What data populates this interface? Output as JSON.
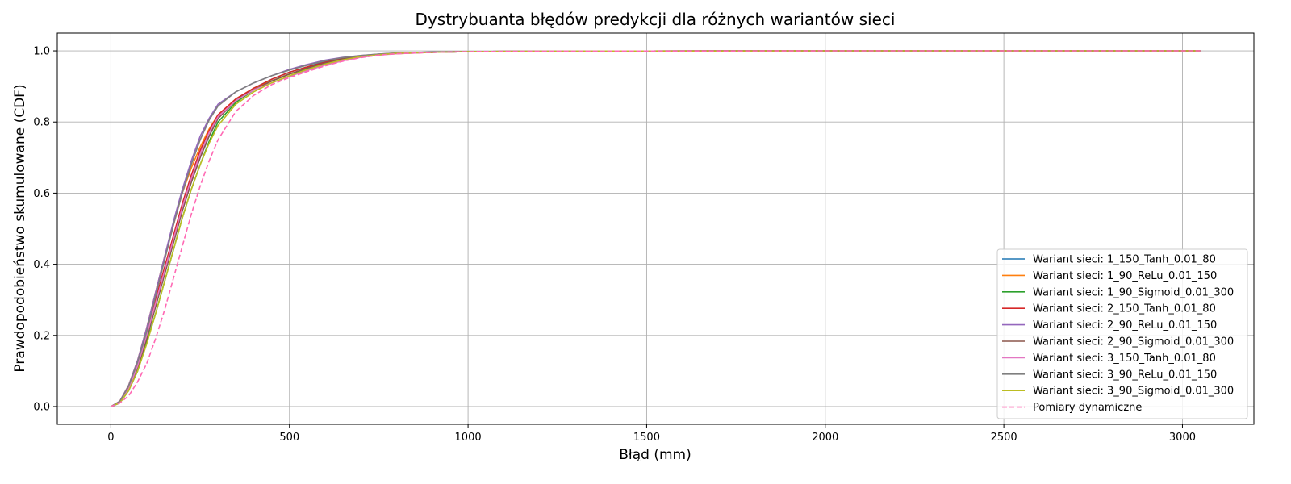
{
  "chart_data": {
    "type": "line",
    "title": "Dystrybuanta błędów predykcji dla różnych wariantów sieci",
    "xlabel": "Błąd (mm)",
    "ylabel": "Prawdopodobieństwo skumulowane (CDF)",
    "xlim": [
      -150,
      3200
    ],
    "ylim": [
      -0.05,
      1.05
    ],
    "xticks": [
      0,
      500,
      1000,
      1500,
      2000,
      2500,
      3000
    ],
    "yticks": [
      0.0,
      0.2,
      0.4,
      0.6,
      0.8,
      1.0
    ],
    "xtick_labels": [
      "0",
      "500",
      "1000",
      "1500",
      "2000",
      "2500",
      "3000"
    ],
    "ytick_labels": [
      "0.0",
      "0.2",
      "0.4",
      "0.6",
      "0.8",
      "1.0"
    ],
    "grid": true,
    "legend_position": "bottom-right",
    "series": [
      {
        "name": "Wariant sieci: 1_150_Tanh_0.01_80",
        "color": "#1f77b4",
        "style": "solid",
        "x": [
          0,
          25,
          50,
          75,
          100,
          125,
          150,
          175,
          200,
          225,
          250,
          275,
          300,
          350,
          400,
          450,
          500,
          550,
          600,
          650,
          700,
          750,
          800,
          900,
          1000,
          1200,
          1500,
          2000,
          2500,
          3050
        ],
        "y": [
          0,
          0.01,
          0.05,
          0.11,
          0.19,
          0.28,
          0.37,
          0.46,
          0.55,
          0.63,
          0.7,
          0.76,
          0.81,
          0.86,
          0.895,
          0.92,
          0.94,
          0.955,
          0.97,
          0.98,
          0.985,
          0.99,
          0.993,
          0.996,
          0.998,
          0.999,
          0.9995,
          1.0,
          1.0,
          1.0
        ]
      },
      {
        "name": "Wariant sieci: 1_90_ReLu_0.01_150",
        "color": "#ff7f0e",
        "style": "solid",
        "x": [
          0,
          25,
          50,
          75,
          100,
          125,
          150,
          175,
          200,
          225,
          250,
          275,
          300,
          350,
          400,
          450,
          500,
          550,
          600,
          650,
          700,
          750,
          800,
          900,
          1000,
          1200,
          1500,
          2000,
          2500,
          3050
        ],
        "y": [
          0,
          0.015,
          0.06,
          0.13,
          0.22,
          0.32,
          0.42,
          0.51,
          0.6,
          0.67,
          0.73,
          0.78,
          0.82,
          0.865,
          0.895,
          0.915,
          0.935,
          0.95,
          0.965,
          0.975,
          0.983,
          0.989,
          0.992,
          0.996,
          0.998,
          0.999,
          0.9995,
          1.0,
          1.0,
          1.0
        ]
      },
      {
        "name": "Wariant sieci: 1_90_Sigmoid_0.01_300",
        "color": "#2ca02c",
        "style": "solid",
        "x": [
          0,
          25,
          50,
          75,
          100,
          125,
          150,
          175,
          200,
          225,
          250,
          275,
          300,
          350,
          400,
          450,
          500,
          550,
          600,
          650,
          700,
          750,
          800,
          900,
          1000,
          1200,
          1500,
          2000,
          2500,
          3050
        ],
        "y": [
          0,
          0.01,
          0.045,
          0.1,
          0.18,
          0.26,
          0.35,
          0.44,
          0.53,
          0.61,
          0.68,
          0.745,
          0.8,
          0.855,
          0.89,
          0.915,
          0.935,
          0.95,
          0.965,
          0.977,
          0.985,
          0.99,
          0.993,
          0.996,
          0.998,
          0.999,
          0.9995,
          1.0,
          1.0,
          1.0
        ]
      },
      {
        "name": "Wariant sieci: 2_150_Tanh_0.01_80",
        "color": "#d62728",
        "style": "solid",
        "x": [
          0,
          25,
          50,
          75,
          100,
          125,
          150,
          175,
          200,
          225,
          250,
          275,
          300,
          350,
          400,
          450,
          500,
          550,
          600,
          650,
          700,
          750,
          800,
          900,
          1000,
          1200,
          1500,
          2000,
          2500,
          3050
        ],
        "y": [
          0,
          0.012,
          0.055,
          0.12,
          0.2,
          0.3,
          0.39,
          0.48,
          0.57,
          0.65,
          0.72,
          0.775,
          0.82,
          0.865,
          0.895,
          0.92,
          0.94,
          0.955,
          0.968,
          0.978,
          0.985,
          0.99,
          0.993,
          0.996,
          0.998,
          0.999,
          0.9995,
          1.0,
          1.0,
          1.0
        ]
      },
      {
        "name": "Wariant sieci: 2_90_ReLu_0.01_150",
        "color": "#9467bd",
        "style": "solid",
        "x": [
          0,
          25,
          50,
          75,
          100,
          125,
          150,
          175,
          200,
          225,
          250,
          275,
          300,
          350,
          400,
          450,
          500,
          550,
          600,
          650,
          700,
          750,
          800,
          900,
          1000,
          1200,
          1500,
          2000,
          2500,
          3050
        ],
        "y": [
          0,
          0.015,
          0.06,
          0.13,
          0.22,
          0.32,
          0.42,
          0.52,
          0.61,
          0.69,
          0.76,
          0.81,
          0.85,
          0.885,
          0.91,
          0.93,
          0.948,
          0.962,
          0.974,
          0.982,
          0.987,
          0.991,
          0.994,
          0.997,
          0.998,
          0.999,
          0.9995,
          1.0,
          1.0,
          1.0
        ]
      },
      {
        "name": "Wariant sieci: 2_90_Sigmoid_0.01_300",
        "color": "#8c564b",
        "style": "solid",
        "x": [
          0,
          25,
          50,
          75,
          100,
          125,
          150,
          175,
          200,
          225,
          250,
          275,
          300,
          350,
          400,
          450,
          500,
          550,
          600,
          650,
          700,
          750,
          800,
          900,
          1000,
          1200,
          1500,
          2000,
          2500,
          3050
        ],
        "y": [
          0,
          0.01,
          0.05,
          0.11,
          0.19,
          0.28,
          0.37,
          0.46,
          0.55,
          0.63,
          0.7,
          0.76,
          0.81,
          0.86,
          0.89,
          0.915,
          0.935,
          0.952,
          0.966,
          0.977,
          0.985,
          0.99,
          0.993,
          0.996,
          0.998,
          0.999,
          0.9995,
          1.0,
          1.0,
          1.0
        ]
      },
      {
        "name": "Wariant sieci: 3_150_Tanh_0.01_80",
        "color": "#e377c2",
        "style": "solid",
        "x": [
          0,
          25,
          50,
          75,
          100,
          125,
          150,
          175,
          200,
          225,
          250,
          275,
          300,
          350,
          400,
          450,
          500,
          550,
          600,
          650,
          700,
          750,
          800,
          900,
          1000,
          1200,
          1500,
          2000,
          2500,
          3050
        ],
        "y": [
          0,
          0.012,
          0.05,
          0.115,
          0.2,
          0.29,
          0.38,
          0.47,
          0.56,
          0.64,
          0.71,
          0.77,
          0.815,
          0.86,
          0.89,
          0.91,
          0.928,
          0.945,
          0.96,
          0.972,
          0.982,
          0.988,
          0.992,
          0.996,
          0.998,
          0.999,
          0.9995,
          1.0,
          1.0,
          1.0
        ]
      },
      {
        "name": "Wariant sieci: 3_90_ReLu_0.01_150",
        "color": "#7f7f7f",
        "style": "solid",
        "x": [
          0,
          25,
          50,
          75,
          100,
          125,
          150,
          175,
          200,
          225,
          250,
          275,
          300,
          350,
          400,
          450,
          500,
          550,
          600,
          650,
          700,
          750,
          800,
          900,
          1000,
          1200,
          1500,
          2000,
          2500,
          3050
        ],
        "y": [
          0,
          0.014,
          0.058,
          0.125,
          0.21,
          0.31,
          0.41,
          0.51,
          0.6,
          0.68,
          0.75,
          0.805,
          0.845,
          0.885,
          0.91,
          0.93,
          0.946,
          0.96,
          0.972,
          0.981,
          0.987,
          0.991,
          0.994,
          0.997,
          0.998,
          0.999,
          0.9995,
          1.0,
          1.0,
          1.0
        ]
      },
      {
        "name": "Wariant sieci: 3_90_Sigmoid_0.01_300",
        "color": "#bcbd22",
        "style": "solid",
        "x": [
          0,
          25,
          50,
          75,
          100,
          125,
          150,
          175,
          200,
          225,
          250,
          275,
          300,
          350,
          400,
          450,
          500,
          550,
          600,
          650,
          700,
          750,
          800,
          900,
          1000,
          1200,
          1500,
          2000,
          2500,
          3050
        ],
        "y": [
          0,
          0.01,
          0.045,
          0.1,
          0.175,
          0.26,
          0.35,
          0.44,
          0.53,
          0.61,
          0.68,
          0.74,
          0.79,
          0.85,
          0.885,
          0.91,
          0.93,
          0.948,
          0.963,
          0.975,
          0.984,
          0.989,
          0.993,
          0.996,
          0.998,
          0.999,
          0.9995,
          1.0,
          1.0,
          1.0
        ]
      },
      {
        "name": "Pomiary dynamiczne",
        "color": "#ff69b4",
        "style": "dashed",
        "x": [
          0,
          25,
          50,
          75,
          100,
          125,
          150,
          175,
          200,
          225,
          250,
          275,
          300,
          350,
          400,
          450,
          500,
          550,
          600,
          650,
          700,
          750,
          800,
          900,
          1000,
          1200,
          1500,
          2000,
          2500,
          3050
        ],
        "y": [
          0,
          0.01,
          0.03,
          0.07,
          0.12,
          0.19,
          0.27,
          0.36,
          0.45,
          0.54,
          0.62,
          0.69,
          0.75,
          0.83,
          0.875,
          0.905,
          0.925,
          0.942,
          0.958,
          0.971,
          0.981,
          0.988,
          0.992,
          0.996,
          0.998,
          0.999,
          0.9995,
          1.0,
          1.0,
          1.0
        ]
      }
    ]
  }
}
